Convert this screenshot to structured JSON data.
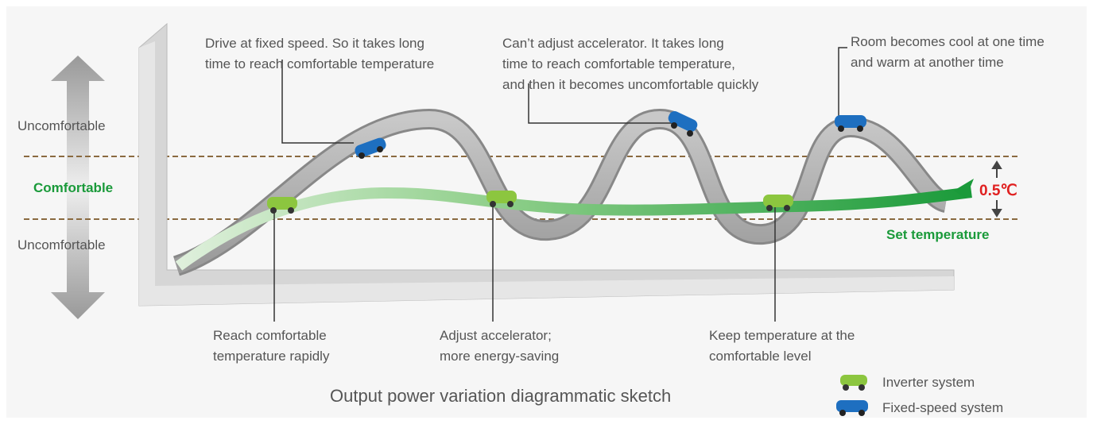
{
  "zones": {
    "top": "Uncomfortable",
    "middle": "Comfortable",
    "bottom": "Uncomfortable"
  },
  "annotations_top": [
    {
      "lines": [
        "Drive at fixed speed. So it takes long",
        "time to reach comfortable temperature"
      ]
    },
    {
      "lines": [
        "Can’t adjust accelerator. It takes long",
        "time to reach comfortable temperature,",
        "and then it becomes uncomfortable quickly"
      ]
    },
    {
      "lines": [
        "Room becomes cool at one time",
        "and warm at another time"
      ]
    }
  ],
  "annotations_bottom": [
    {
      "lines": [
        "Reach comfortable",
        "temperature rapidly"
      ]
    },
    {
      "lines": [
        "Adjust accelerator;",
        "more energy-saving"
      ]
    },
    {
      "lines": [
        "Keep temperature at the",
        "comfortable level"
      ]
    }
  ],
  "tolerance": "0.5℃",
  "set_temperature": "Set temperature",
  "title": "Output power variation diagrammatic sketch",
  "legend": [
    "Inverter system",
    "Fixed-speed system"
  ]
}
